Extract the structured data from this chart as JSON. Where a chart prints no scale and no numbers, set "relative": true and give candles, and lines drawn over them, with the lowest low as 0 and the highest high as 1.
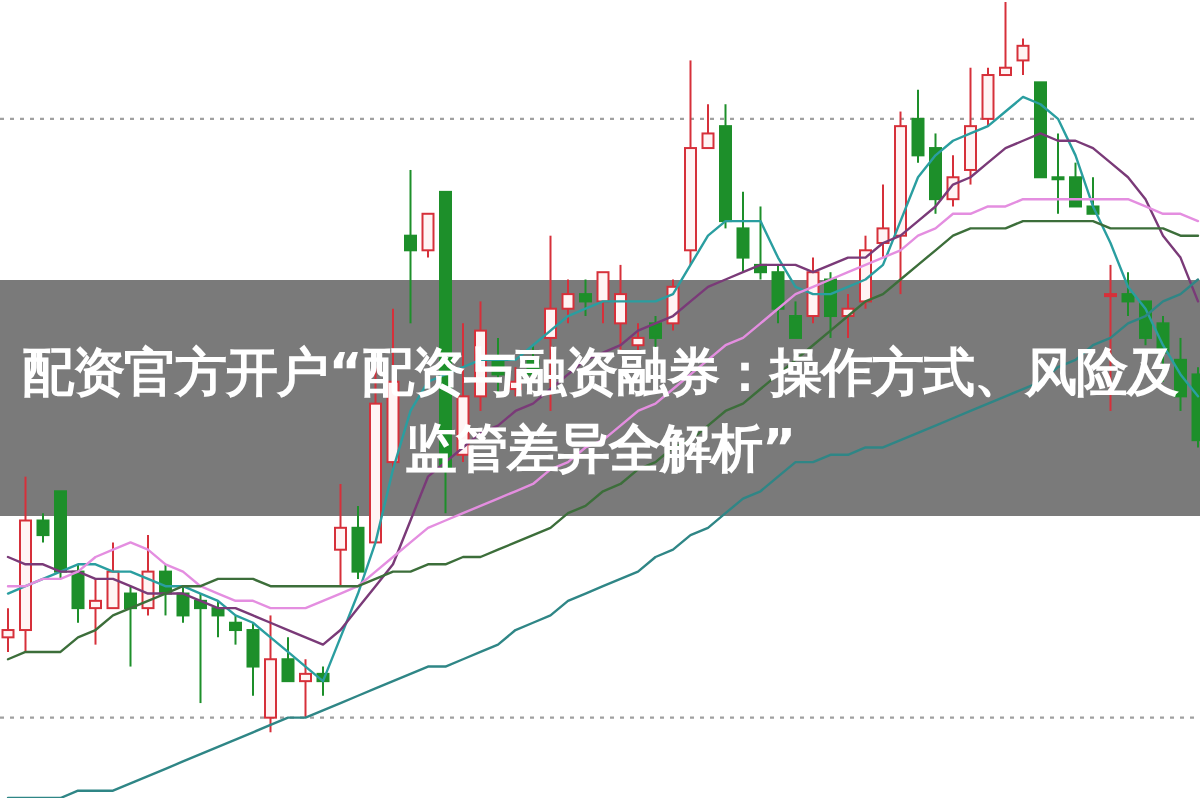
{
  "chart_data": {
    "type": "candlestick",
    "relative": true,
    "title": "配资官方开户“配资与融资融券：操作方式、风险及监管差异全解析”",
    "categories": [
      null,
      null,
      null,
      null,
      null,
      null,
      null,
      null,
      null,
      null,
      null,
      null,
      null,
      null,
      null,
      null,
      null,
      null,
      null,
      null,
      null,
      null,
      null,
      null,
      null,
      null,
      null,
      null,
      null,
      null,
      null,
      null,
      null,
      null,
      null,
      null,
      null,
      null,
      null,
      null,
      null,
      null,
      null,
      null,
      null,
      null,
      null,
      null,
      null,
      null,
      null,
      null,
      null,
      null,
      null,
      null,
      null,
      null,
      null,
      null,
      null,
      null,
      null,
      null,
      null,
      null,
      null,
      null,
      null
    ],
    "ohlc": [
      [
        0.13,
        0.17,
        0.11,
        0.14
      ],
      [
        0.14,
        0.35,
        0.11,
        0.29
      ],
      [
        0.29,
        0.3,
        0.26,
        0.27
      ],
      [
        0.33,
        0.33,
        0.21,
        0.22
      ],
      [
        0.22,
        0.23,
        0.15,
        0.17
      ],
      [
        0.17,
        0.21,
        0.12,
        0.18
      ],
      [
        0.17,
        0.26,
        0.17,
        0.22
      ],
      [
        0.19,
        0.2,
        0.09,
        0.17
      ],
      [
        0.17,
        0.27,
        0.16,
        0.22
      ],
      [
        0.22,
        0.23,
        0.16,
        0.19
      ],
      [
        0.19,
        0.2,
        0.15,
        0.16
      ],
      [
        0.18,
        0.19,
        0.04,
        0.17
      ],
      [
        0.17,
        0.18,
        0.13,
        0.16
      ],
      [
        0.15,
        0.16,
        0.12,
        0.14
      ],
      [
        0.14,
        0.15,
        0.05,
        0.09
      ],
      [
        0.02,
        0.16,
        0,
        0.1
      ],
      [
        0.1,
        0.13,
        0.07,
        0.07
      ],
      [
        0.07,
        0.1,
        0.02,
        0.08
      ],
      [
        0.08,
        0.09,
        0.05,
        0.07
      ],
      [
        0.25,
        0.34,
        0.2,
        0.28
      ],
      [
        0.28,
        0.31,
        0.21,
        0.22
      ],
      [
        0.26,
        0.5,
        0.26,
        0.45
      ],
      [
        0.37,
        0.58,
        0.36,
        0.48
      ],
      [
        0.68,
        0.77,
        0.56,
        0.66
      ],
      [
        0.66,
        0.71,
        0.65,
        0.71
      ],
      [
        0.74,
        0.74,
        0.3,
        0.36
      ],
      [
        0.38,
        0.56,
        0.37,
        0.46
      ],
      [
        0.46,
        0.59,
        0.44,
        0.55
      ],
      [
        0.51,
        0.54,
        0.46,
        0.49
      ],
      [
        0.47,
        0.5,
        0.46,
        0.48
      ],
      [
        0.51,
        0.53,
        0.48,
        0.49
      ],
      [
        0.54,
        0.68,
        0.44,
        0.58
      ],
      [
        0.58,
        0.62,
        0.56,
        0.6
      ],
      [
        0.6,
        0.62,
        0.57,
        0.59
      ],
      [
        0.59,
        0.63,
        0.56,
        0.63
      ],
      [
        0.56,
        0.64,
        0.52,
        0.6
      ],
      [
        0.53,
        0.56,
        0.52,
        0.54
      ],
      [
        0.56,
        0.57,
        0.52,
        0.54
      ],
      [
        0.56,
        0.62,
        0.55,
        0.61
      ],
      [
        0.66,
        0.92,
        0.64,
        0.8
      ],
      [
        0.8,
        0.86,
        0.8,
        0.82
      ],
      [
        0.83,
        0.86,
        0.69,
        0.7
      ],
      [
        0.69,
        0.74,
        0.63,
        0.65
      ],
      [
        0.64,
        0.72,
        0.62,
        0.63
      ],
      [
        0.63,
        0.64,
        0.56,
        0.58
      ],
      [
        0.57,
        0.59,
        0.54,
        0.54
      ],
      [
        0.57,
        0.65,
        0.56,
        0.63
      ],
      [
        0.62,
        0.63,
        0.54,
        0.57
      ],
      [
        0.57,
        0.6,
        0.54,
        0.58
      ],
      [
        0.59,
        0.68,
        0.58,
        0.66
      ],
      [
        0.67,
        0.75,
        0.65,
        0.69
      ],
      [
        0.68,
        0.85,
        0.6,
        0.83
      ],
      [
        0.84,
        0.88,
        0.78,
        0.79
      ],
      [
        0.8,
        0.82,
        0.71,
        0.73
      ],
      [
        0.73,
        0.79,
        0.72,
        0.76
      ],
      [
        0.77,
        0.91,
        0.75,
        0.83
      ],
      [
        0.84,
        0.91,
        0.83,
        0.9
      ],
      [
        0.9,
        1,
        0.9,
        0.91
      ],
      [
        0.92,
        0.95,
        0.9,
        0.94
      ],
      [
        0.89,
        0.89,
        0.76,
        0.76
      ],
      [
        0.76,
        0.82,
        0.71,
        0.76
      ],
      [
        0.76,
        0.78,
        0.72,
        0.72
      ],
      [
        0.72,
        0.76,
        0.71,
        0.71
      ],
      [
        0.6,
        0.64,
        0.44,
        0.6
      ],
      [
        0.6,
        0.63,
        0.57,
        0.59
      ],
      [
        0.59,
        0.59,
        0.53,
        0.54
      ],
      [
        0.56,
        0.57,
        0.48,
        0.52
      ],
      [
        0.51,
        0.54,
        0.44,
        0.46
      ],
      [
        0.49,
        0.5,
        0.39,
        0.4
      ]
    ],
    "colors": [
      "#d6303a",
      "#d6303a",
      "#1d8f2a",
      "#1d8f2a",
      "#1d8f2a",
      "#d6303a",
      "#d6303a",
      "#1d8f2a",
      "#d6303a",
      "#1d8f2a",
      "#1d8f2a",
      "#1d8f2a",
      "#1d8f2a",
      "#1d8f2a",
      "#1d8f2a",
      "#d6303a",
      "#1d8f2a",
      "#d6303a",
      "#1d8f2a",
      "#d6303a",
      "#1d8f2a",
      "#d6303a",
      "#d6303a",
      "#1d8f2a",
      "#d6303a",
      "#1d8f2a",
      "#d6303a",
      "#d6303a",
      "#1d8f2a",
      "#d6303a",
      "#1d8f2a",
      "#d6303a",
      "#d6303a",
      "#1d8f2a",
      "#d6303a",
      "#d6303a",
      "#d6303a",
      "#1d8f2a",
      "#d6303a",
      "#d6303a",
      "#d6303a",
      "#1d8f2a",
      "#1d8f2a",
      "#1d8f2a",
      "#1d8f2a",
      "#1d8f2a",
      "#d6303a",
      "#1d8f2a",
      "#d6303a",
      "#d6303a",
      "#d6303a",
      "#d6303a",
      "#1d8f2a",
      "#1d8f2a",
      "#d6303a",
      "#d6303a",
      "#d6303a",
      "#d6303a",
      "#d6303a",
      "#1d8f2a",
      "#1d8f2a",
      "#1d8f2a",
      "#1d8f2a",
      "#d6303a",
      "#1d8f2a",
      "#1d8f2a",
      "#1d8f2a",
      "#1d8f2a",
      "#1d8f2a"
    ],
    "series": [
      {
        "type": "line",
        "color": "#2a9ea0",
        "values": [
          0.19,
          0.2,
          0.21,
          0.22,
          0.23,
          0.23,
          0.22,
          0.22,
          0.21,
          0.2,
          0.2,
          0.19,
          0.18,
          0.16,
          0.15,
          0.13,
          0.11,
          0.09,
          0.07,
          0.13,
          0.19,
          0.26,
          0.36,
          0.44,
          0.48,
          0.49,
          0.5,
          0.51,
          0.51,
          0.51,
          0.53,
          0.55,
          0.57,
          0.58,
          0.59,
          0.59,
          0.59,
          0.59,
          0.6,
          0.64,
          0.68,
          0.7,
          0.7,
          0.7,
          0.65,
          0.61,
          0.6,
          0.6,
          0.61,
          0.62,
          0.64,
          0.7,
          0.76,
          0.79,
          0.81,
          0.82,
          0.83,
          0.85,
          0.87,
          0.86,
          0.84,
          0.79,
          0.72,
          0.67,
          0.61,
          0.58,
          0.53,
          0.49,
          0.46
        ]
      },
      {
        "type": "line",
        "color": "#7a3a78",
        "values": [
          0.24,
          0.23,
          0.23,
          0.22,
          0.22,
          0.21,
          0.21,
          0.2,
          0.19,
          0.19,
          0.19,
          0.18,
          0.17,
          0.17,
          0.16,
          0.15,
          0.14,
          0.13,
          0.12,
          0.14,
          0.17,
          0.2,
          0.23,
          0.29,
          0.35,
          0.37,
          0.39,
          0.41,
          0.42,
          0.44,
          0.45,
          0.47,
          0.49,
          0.51,
          0.52,
          0.53,
          0.55,
          0.56,
          0.57,
          0.59,
          0.61,
          0.62,
          0.63,
          0.64,
          0.64,
          0.64,
          0.63,
          0.64,
          0.65,
          0.65,
          0.67,
          0.68,
          0.7,
          0.72,
          0.75,
          0.76,
          0.78,
          0.8,
          0.81,
          0.82,
          0.81,
          0.81,
          0.8,
          0.78,
          0.76,
          0.73,
          0.68,
          0.65,
          0.59
        ]
      },
      {
        "type": "line",
        "color": "#e48ee0",
        "values": [
          0.2,
          0.2,
          0.21,
          0.21,
          0.22,
          0.24,
          0.25,
          0.26,
          0.25,
          0.23,
          0.22,
          0.2,
          0.19,
          0.18,
          0.18,
          0.17,
          0.17,
          0.17,
          0.18,
          0.19,
          0.2,
          0.22,
          0.24,
          0.26,
          0.28,
          0.29,
          0.3,
          0.31,
          0.32,
          0.33,
          0.34,
          0.36,
          0.37,
          0.39,
          0.4,
          0.42,
          0.44,
          0.45,
          0.47,
          0.49,
          0.51,
          0.53,
          0.54,
          0.56,
          0.58,
          0.6,
          0.61,
          0.62,
          0.63,
          0.64,
          0.65,
          0.66,
          0.68,
          0.69,
          0.71,
          0.71,
          0.72,
          0.72,
          0.73,
          0.73,
          0.73,
          0.73,
          0.73,
          0.73,
          0.73,
          0.72,
          0.71,
          0.71,
          0.7
        ]
      },
      {
        "type": "line",
        "color": "#3c6e3a",
        "values": [
          0.1,
          0.11,
          0.11,
          0.11,
          0.13,
          0.14,
          0.16,
          0.17,
          0.18,
          0.19,
          0.2,
          0.2,
          0.21,
          0.21,
          0.21,
          0.2,
          0.2,
          0.2,
          0.2,
          0.2,
          0.2,
          0.21,
          0.22,
          0.22,
          0.23,
          0.23,
          0.24,
          0.24,
          0.25,
          0.26,
          0.27,
          0.28,
          0.3,
          0.31,
          0.33,
          0.34,
          0.36,
          0.37,
          0.39,
          0.4,
          0.42,
          0.44,
          0.45,
          0.47,
          0.49,
          0.51,
          0.53,
          0.55,
          0.57,
          0.59,
          0.6,
          0.62,
          0.64,
          0.66,
          0.68,
          0.69,
          0.69,
          0.69,
          0.7,
          0.7,
          0.7,
          0.7,
          0.7,
          0.69,
          0.69,
          0.69,
          0.69,
          0.68,
          0.68
        ]
      },
      {
        "type": "line",
        "color": "#2f8686",
        "values": [
          -0.09,
          -0.09,
          -0.09,
          -0.09,
          -0.08,
          -0.08,
          -0.08,
          -0.07,
          -0.06,
          -0.05,
          -0.04,
          -0.03,
          -0.02,
          -0.01,
          0,
          0.01,
          0.02,
          0.02,
          0.03,
          0.04,
          0.05,
          0.06,
          0.07,
          0.08,
          0.09,
          0.09,
          0.1,
          0.11,
          0.12,
          0.14,
          0.15,
          0.16,
          0.18,
          0.19,
          0.2,
          0.21,
          0.22,
          0.24,
          0.25,
          0.27,
          0.28,
          0.3,
          0.32,
          0.33,
          0.35,
          0.37,
          0.37,
          0.38,
          0.38,
          0.39,
          0.39,
          0.4,
          0.41,
          0.42,
          0.43,
          0.44,
          0.45,
          0.46,
          0.47,
          0.48,
          0.5,
          0.51,
          0.53,
          0.54,
          0.56,
          0.57,
          0.59,
          0.6,
          0.62
        ]
      }
    ],
    "ref_lines": [
      {
        "axis": "y",
        "value": 0.84,
        "line_style": "dotted",
        "color": "#a0a0a0"
      },
      {
        "axis": "y",
        "value": 0.02,
        "line_style": "dotted",
        "color": "#a0a0a0"
      }
    ]
  }
}
